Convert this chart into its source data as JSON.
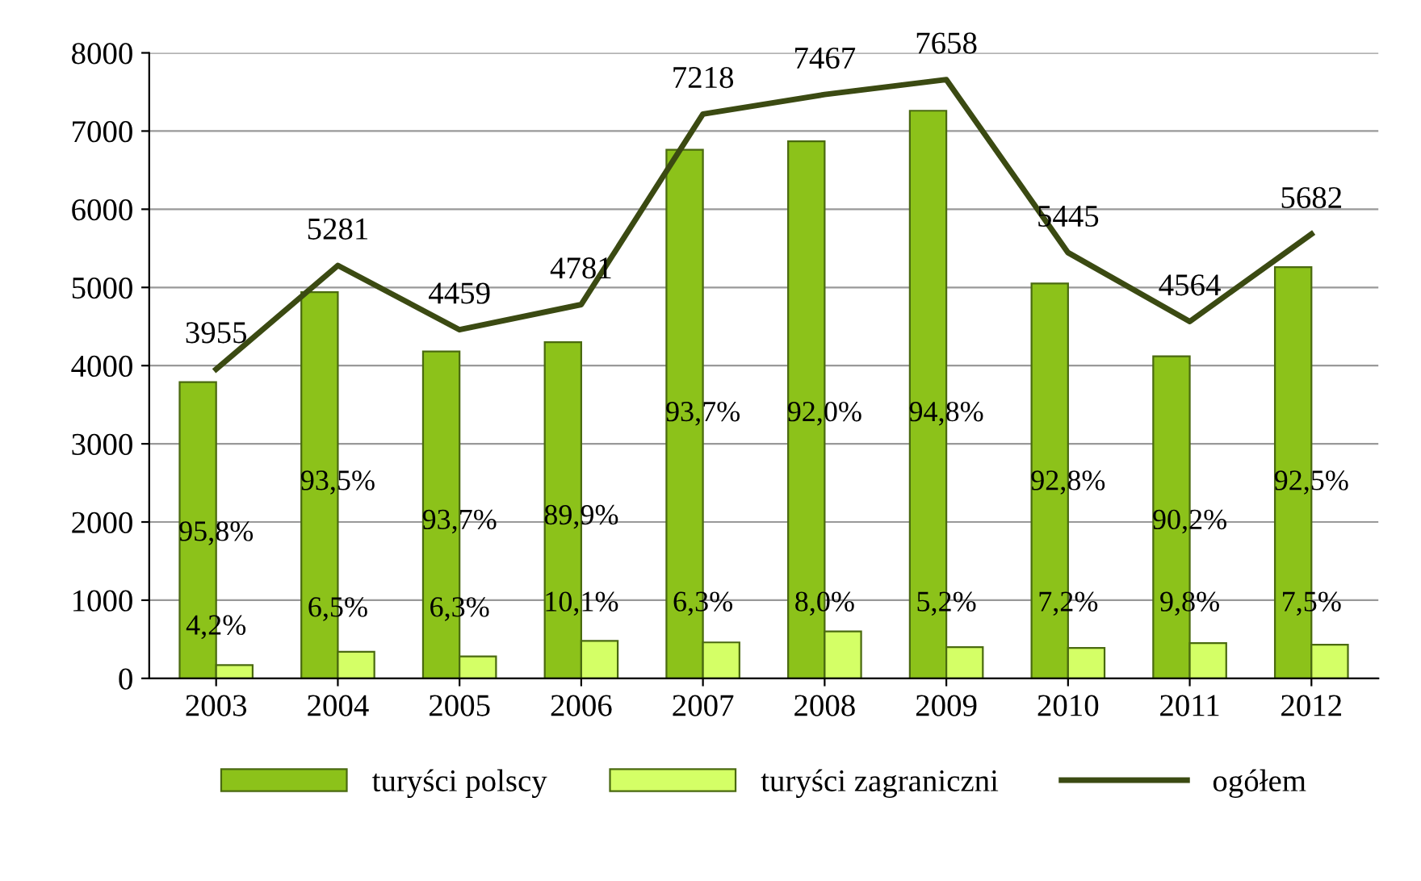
{
  "chart_data": {
    "type": "bar",
    "categories": [
      "2003",
      "2004",
      "2005",
      "2006",
      "2007",
      "2008",
      "2009",
      "2010",
      "2011",
      "2012"
    ],
    "series": [
      {
        "name": "turyści polscy",
        "color": "#8cc21a",
        "values": [
          3790,
          4940,
          4180,
          4300,
          6760,
          6870,
          7260,
          5050,
          4120,
          5260
        ]
      },
      {
        "name": "turyści zagraniczni",
        "color": "#d4ff66",
        "values": [
          170,
          340,
          280,
          480,
          460,
          600,
          400,
          390,
          450,
          430
        ]
      },
      {
        "name": "ogółem",
        "type": "line",
        "color": "#3b4a12",
        "values": [
          3955,
          5281,
          4459,
          4781,
          7218,
          7467,
          7658,
          5445,
          4564,
          5682
        ],
        "value_labels": [
          "3955",
          "5281",
          "4459",
          "4781",
          "7218",
          "7467",
          "7658",
          "5445",
          "4564",
          "5682"
        ]
      }
    ],
    "annotations": [
      {
        "text": "95,8%",
        "x": "2003",
        "y": 1850
      },
      {
        "text": "93,5%",
        "x": "2004",
        "y": 2500
      },
      {
        "text": "93,7%",
        "x": "2005",
        "y": 2000
      },
      {
        "text": "89,9%",
        "x": "2006",
        "y": 2060
      },
      {
        "text": "93,7%",
        "x": "2007",
        "y": 3380
      },
      {
        "text": "92,0%",
        "x": "2008",
        "y": 3380
      },
      {
        "text": "94,8%",
        "x": "2009",
        "y": 3380
      },
      {
        "text": "92,8%",
        "x": "2010",
        "y": 2500
      },
      {
        "text": "90,2%",
        "x": "2011",
        "y": 2000
      },
      {
        "text": "92,5%",
        "x": "2012",
        "y": 2500
      },
      {
        "text": "4,2%",
        "x": "2003",
        "y": 650
      },
      {
        "text": "6,5%",
        "x": "2004",
        "y": 880
      },
      {
        "text": "6,3%",
        "x": "2005",
        "y": 880
      },
      {
        "text": "10,1%",
        "x": "2006",
        "y": 950
      },
      {
        "text": "6,3%",
        "x": "2007",
        "y": 950
      },
      {
        "text": "8,0%",
        "x": "2008",
        "y": 950
      },
      {
        "text": "5,2%",
        "x": "2009",
        "y": 950
      },
      {
        "text": "7,2%",
        "x": "2010",
        "y": 950
      },
      {
        "text": "9,8%",
        "x": "2011",
        "y": 950
      },
      {
        "text": "7,5%",
        "x": "2012",
        "y": 950
      }
    ],
    "ylim": [
      0,
      8000
    ],
    "yticks": [
      0,
      1000,
      2000,
      3000,
      4000,
      5000,
      6000,
      7000,
      8000
    ],
    "grid": "y",
    "legend": "bottom",
    "marker": "none",
    "line_style": "solid"
  }
}
